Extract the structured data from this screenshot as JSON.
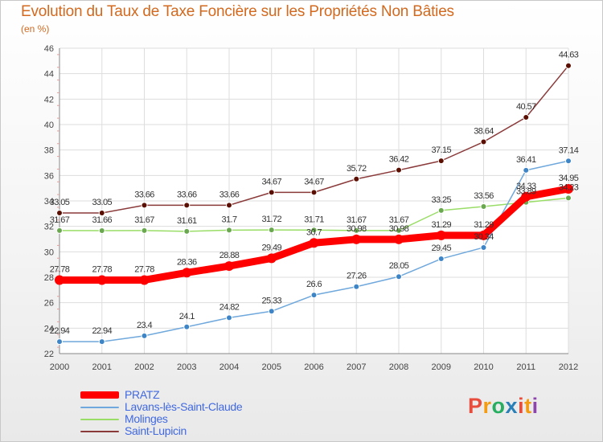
{
  "header": {
    "title": "Evolution du Taux de Taxe Foncière sur les Propriétés Non Bâties",
    "subtitle": "(en %)"
  },
  "brand": {
    "text": "Proxiti",
    "colors": [
      "#e74c3c",
      "#f39c12",
      "#27ae60",
      "#2980b9",
      "#e74c3c",
      "#f39c12",
      "#8e44ad"
    ]
  },
  "chart_data": {
    "type": "line",
    "title": "Evolution du Taux de Taxe Foncière sur les Propriétés Non Bâties",
    "ylabel": "(en %)",
    "xlabel": "",
    "x": [
      "2000",
      "2001",
      "2002",
      "2003",
      "2004",
      "2005",
      "2006",
      "2007",
      "2008",
      "2009",
      "2010",
      "2011",
      "2012"
    ],
    "ylim": [
      22,
      46
    ],
    "yticks": [
      22,
      24,
      26,
      28,
      30,
      32,
      34,
      36,
      38,
      40,
      42,
      44,
      46
    ],
    "grid": true,
    "legend": "bottom-left",
    "series": [
      {
        "name": "PRATZ",
        "color": "#ff0000",
        "values": [
          27.78,
          27.78,
          27.78,
          28.36,
          28.88,
          29.49,
          30.7,
          30.98,
          30.98,
          31.29,
          31.29,
          34.33,
          34.95
        ],
        "labels": [
          "27.78",
          "27.78",
          "27.78",
          "28.36",
          "28.88",
          "29.49",
          "30.7",
          "30.98",
          "30.98",
          "31.29",
          "31.29",
          "34.33",
          "34.95"
        ]
      },
      {
        "name": "Lavans-lès-Saint-Claude",
        "color": "#6fa8dc",
        "values": [
          22.94,
          22.94,
          23.4,
          24.1,
          24.82,
          25.33,
          26.6,
          27.26,
          28.05,
          29.45,
          30.34,
          36.41,
          37.14
        ],
        "labels": [
          "22.94",
          "22.94",
          "23.4",
          "24.1",
          "24.82",
          "25.33",
          "26.6",
          "27.26",
          "28.05",
          "29.45",
          "30.34",
          "36.41",
          "37.14"
        ]
      },
      {
        "name": "Molinges",
        "color": "#99dd66",
        "values": [
          31.67,
          31.66,
          31.67,
          31.61,
          31.7,
          31.72,
          31.71,
          31.67,
          31.67,
          33.25,
          33.56,
          33.89,
          34.23
        ],
        "labels": [
          "31.67",
          "31.66",
          "31.67",
          "31.61",
          "31.7",
          "31.72",
          "31.71",
          "31.67",
          "31.67",
          "33.25",
          "33.56",
          "33.89",
          "34.23"
        ]
      },
      {
        "name": "Saint-Lupicin",
        "color": "#8b3a3a",
        "values": [
          33.05,
          33.05,
          33.66,
          33.66,
          33.66,
          34.67,
          34.67,
          35.72,
          36.42,
          37.15,
          38.64,
          40.57,
          44.63
        ],
        "labels": [
          "33.05",
          "33.05",
          "33.66",
          "33.66",
          "33.66",
          "34.67",
          "34.67",
          "35.72",
          "36.42",
          "37.15",
          "38.64",
          "40.57",
          "44.63"
        ]
      }
    ]
  }
}
